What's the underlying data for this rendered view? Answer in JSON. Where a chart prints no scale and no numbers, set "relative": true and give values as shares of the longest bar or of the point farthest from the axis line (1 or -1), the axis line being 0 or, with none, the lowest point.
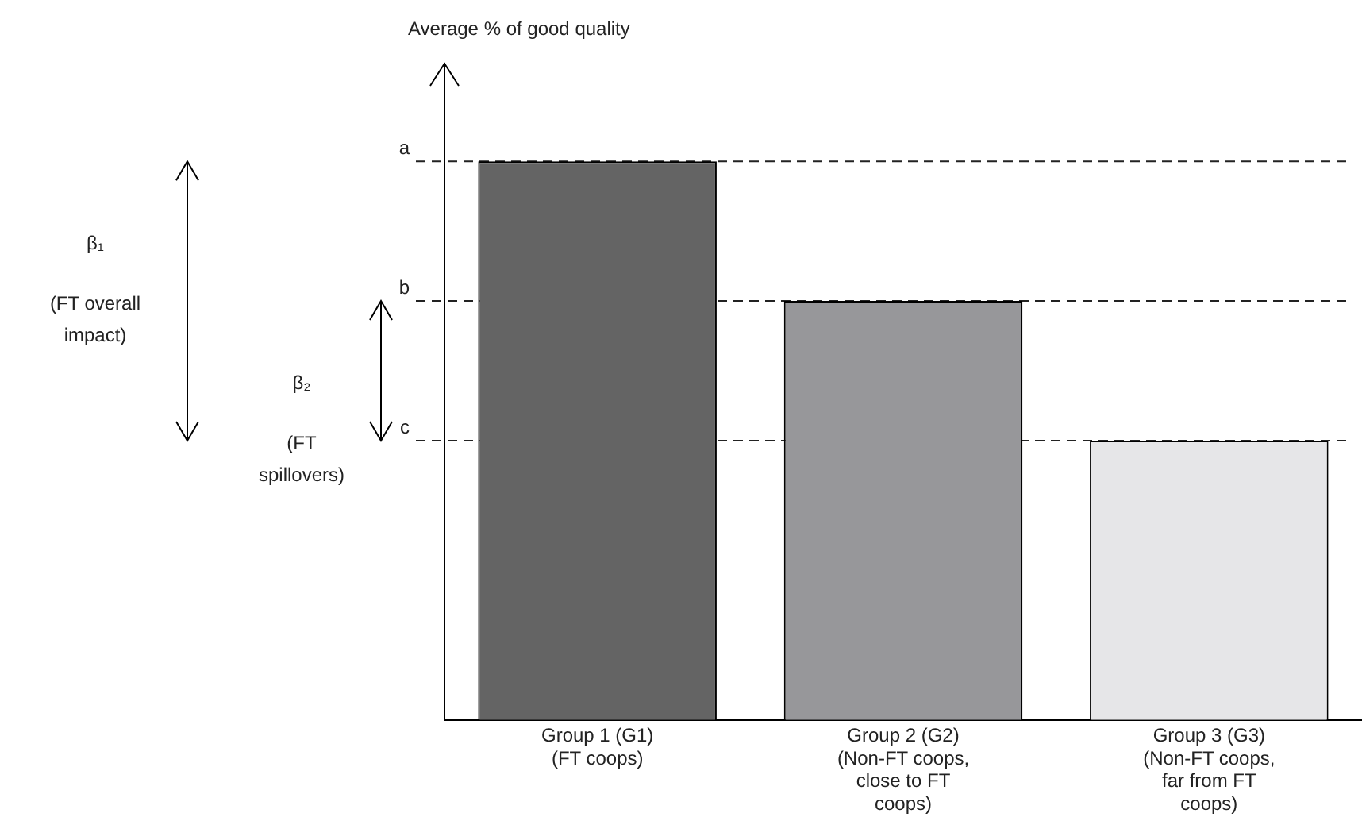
{
  "chart_data": {
    "type": "bar",
    "relative": true,
    "categories": [
      "Group 1 (G1)\n(FT coops)",
      "Group 2 (G2)\n(Non-FT coops,\nclose to FT\ncoops)",
      "Group 3 (G3)\n(Non-FT coops,\nfar from FT\ncoops)"
    ],
    "values": [
      1,
      0.75,
      0.5
    ],
    "colors": [
      "#646464",
      "#97979a",
      "#e6e6e8"
    ],
    "ref_lines": [
      {
        "axis": "y",
        "value": 1,
        "label": "a",
        "line_style": "dashed"
      },
      {
        "axis": "y",
        "value": 0.75,
        "label": "b",
        "line_style": "dashed"
      },
      {
        "axis": "y",
        "value": 0.5,
        "label": "c",
        "line_style": "dashed"
      }
    ],
    "annotations": [
      "Average % of good quality",
      "β₁",
      "(FT overall impact)",
      "β₂",
      "(FT spillovers)"
    ],
    "grid": false,
    "legend": false
  }
}
